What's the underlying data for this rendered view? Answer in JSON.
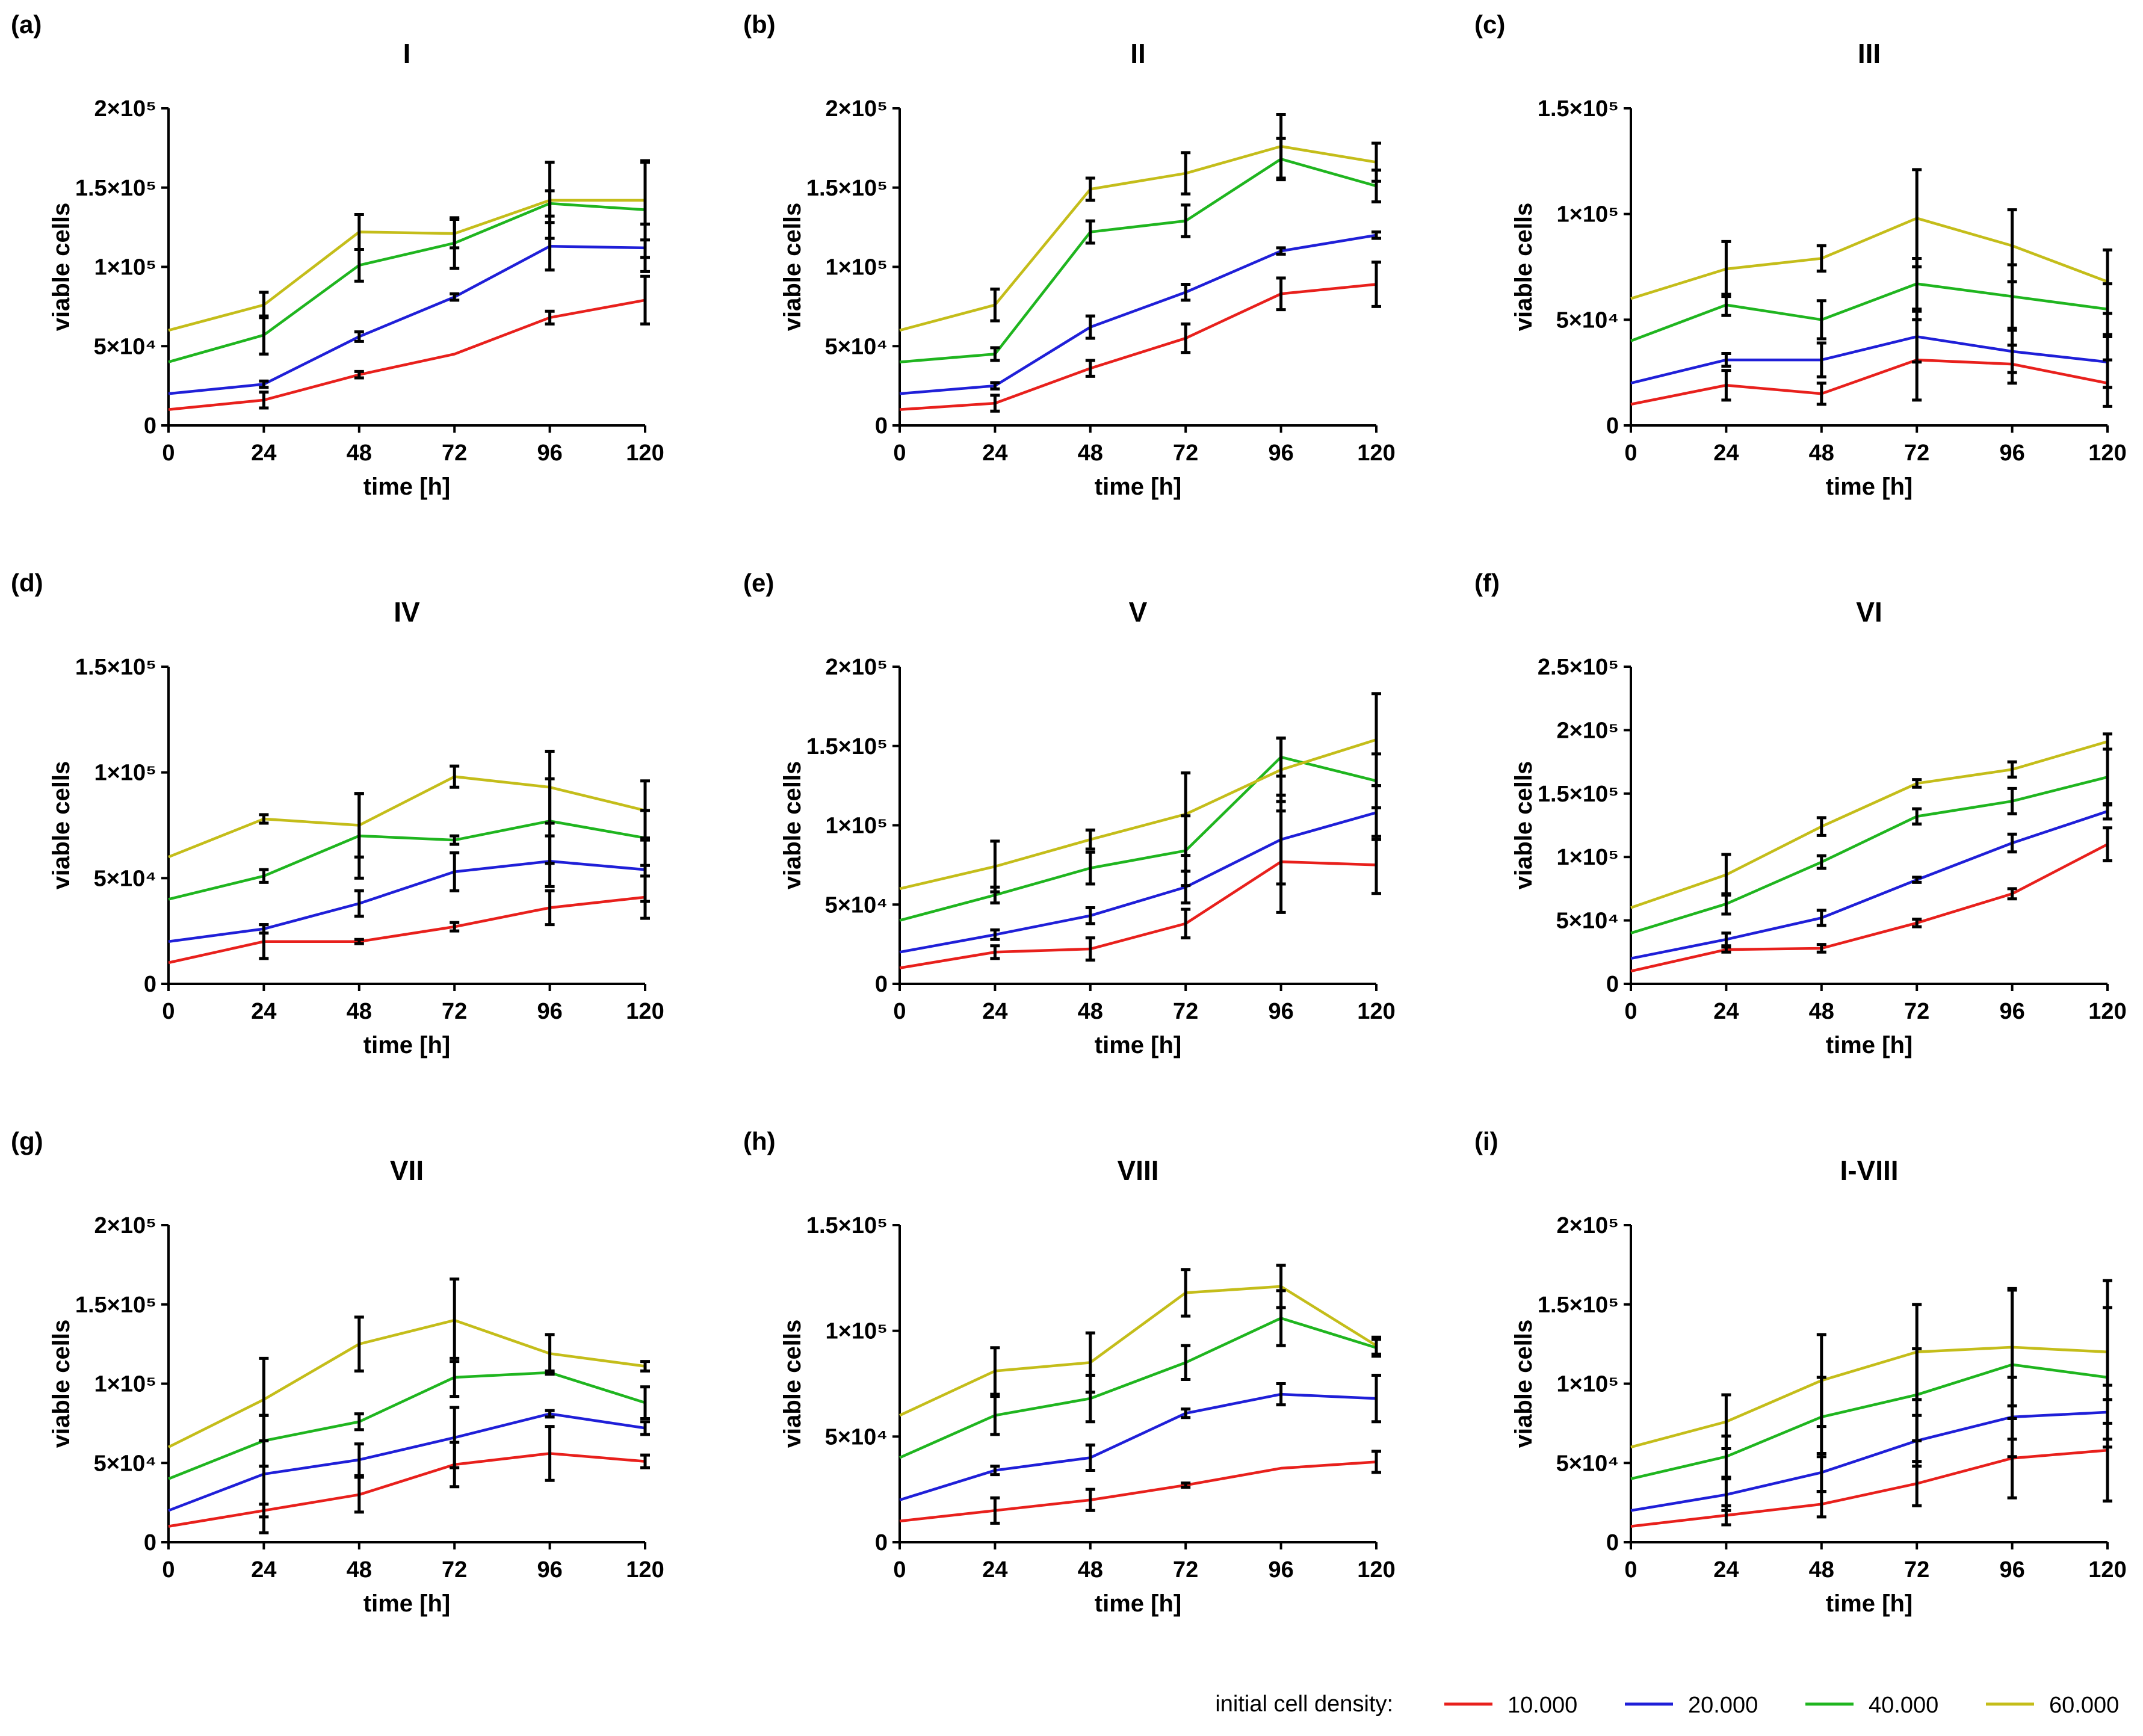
{
  "chart_data": [
    {
      "type": "line",
      "panel": "(a)",
      "title": "I",
      "xlabel": "time [h]",
      "ylabel": "viable cells",
      "x": [
        0,
        24,
        48,
        72,
        96,
        120
      ],
      "xticks": [
        "0",
        "24",
        "48",
        "72",
        "96",
        "120"
      ],
      "ylim": [
        0,
        200000
      ],
      "yticks": [
        {
          "value": 0,
          "label": "0"
        },
        {
          "value": 50000,
          "label": "5×10⁴"
        },
        {
          "value": 100000,
          "label": "1×10⁵"
        },
        {
          "value": 150000,
          "label": "1.5×10⁵"
        },
        {
          "value": 200000,
          "label": "2×10⁵"
        }
      ],
      "series": [
        {
          "name": "10.000",
          "values": [
            10000,
            16000,
            32000,
            45000,
            68000,
            79000
          ],
          "errors": [
            0,
            5000,
            2000,
            0,
            4000,
            15000
          ]
        },
        {
          "name": "20.000",
          "values": [
            20000,
            26000,
            56000,
            81000,
            113000,
            112000
          ],
          "errors": [
            0,
            2000,
            3000,
            2000,
            15000,
            15000
          ]
        },
        {
          "name": "40.000",
          "values": [
            40000,
            57000,
            101000,
            115000,
            140000,
            136000
          ],
          "errors": [
            0,
            12000,
            10000,
            16000,
            8000,
            30000
          ]
        },
        {
          "name": "60.000",
          "values": [
            60000,
            76000,
            122000,
            121000,
            142000,
            142000
          ],
          "errors": [
            0,
            8000,
            11000,
            9000,
            24000,
            25000
          ]
        }
      ]
    },
    {
      "type": "line",
      "panel": "(b)",
      "title": "II",
      "xlabel": "time [h]",
      "ylabel": "viable cells",
      "x": [
        0,
        24,
        48,
        72,
        96,
        120
      ],
      "xticks": [
        "0",
        "24",
        "48",
        "72",
        "96",
        "120"
      ],
      "ylim": [
        0,
        200000
      ],
      "yticks": [
        {
          "value": 0,
          "label": "0"
        },
        {
          "value": 50000,
          "label": "5×10⁴"
        },
        {
          "value": 100000,
          "label": "1×10⁵"
        },
        {
          "value": 150000,
          "label": "1.5×10⁵"
        },
        {
          "value": 200000,
          "label": "2×10⁵"
        }
      ],
      "series": [
        {
          "name": "10.000",
          "values": [
            10000,
            14000,
            36000,
            55000,
            83000,
            89000
          ],
          "errors": [
            0,
            5000,
            5000,
            9000,
            10000,
            14000
          ]
        },
        {
          "name": "20.000",
          "values": [
            20000,
            25000,
            62000,
            84000,
            110000,
            120000
          ],
          "errors": [
            0,
            2000,
            7000,
            5000,
            2000,
            2000
          ]
        },
        {
          "name": "40.000",
          "values": [
            40000,
            45000,
            122000,
            129000,
            168000,
            151000
          ],
          "errors": [
            0,
            4000,
            7000,
            10000,
            13000,
            10000
          ]
        },
        {
          "name": "60.000",
          "values": [
            60000,
            76000,
            149000,
            159000,
            176000,
            166000
          ],
          "errors": [
            0,
            10000,
            7000,
            13000,
            20000,
            12000
          ]
        }
      ]
    },
    {
      "type": "line",
      "panel": "(c)",
      "title": "III",
      "xlabel": "time [h]",
      "ylabel": "viable cells",
      "x": [
        0,
        24,
        48,
        72,
        96,
        120
      ],
      "xticks": [
        "0",
        "24",
        "48",
        "72",
        "96",
        "120"
      ],
      "ylim": [
        0,
        150000
      ],
      "yticks": [
        {
          "value": 0,
          "label": "0"
        },
        {
          "value": 50000,
          "label": "5×10⁴"
        },
        {
          "value": 100000,
          "label": "1×10⁵"
        },
        {
          "value": 150000,
          "label": "1.5×10⁵"
        }
      ],
      "series": [
        {
          "name": "10.000",
          "values": [
            10000,
            19000,
            15000,
            31000,
            29000,
            20000
          ],
          "errors": [
            0,
            7000,
            5000,
            19000,
            9000,
            11000
          ]
        },
        {
          "name": "20.000",
          "values": [
            20000,
            31000,
            31000,
            42000,
            35000,
            30000
          ],
          "errors": [
            0,
            3000,
            8000,
            12000,
            10000,
            12000
          ]
        },
        {
          "name": "40.000",
          "values": [
            40000,
            57000,
            50000,
            67000,
            61000,
            55000
          ],
          "errors": [
            0,
            5000,
            9000,
            12000,
            15000,
            12000
          ]
        },
        {
          "name": "60.000",
          "values": [
            60000,
            74000,
            79000,
            98000,
            85000,
            68000
          ],
          "errors": [
            0,
            13000,
            6000,
            23000,
            17000,
            15000
          ]
        }
      ]
    },
    {
      "type": "line",
      "panel": "(d)",
      "title": "IV",
      "xlabel": "time [h]",
      "ylabel": "viable cells",
      "x": [
        0,
        24,
        48,
        72,
        96,
        120
      ],
      "xticks": [
        "0",
        "24",
        "48",
        "72",
        "96",
        "120"
      ],
      "ylim": [
        0,
        150000
      ],
      "yticks": [
        {
          "value": 0,
          "label": "0"
        },
        {
          "value": 50000,
          "label": "5×10⁴"
        },
        {
          "value": 100000,
          "label": "1×10⁵"
        },
        {
          "value": 150000,
          "label": "1.5×10⁵"
        }
      ],
      "series": [
        {
          "name": "10.000",
          "values": [
            10000,
            20000,
            20000,
            27000,
            36000,
            41000
          ],
          "errors": [
            0,
            8000,
            1000,
            2000,
            8000,
            10000
          ]
        },
        {
          "name": "20.000",
          "values": [
            20000,
            26000,
            38000,
            53000,
            58000,
            54000
          ],
          "errors": [
            0,
            2000,
            6000,
            9000,
            12000,
            15000
          ]
        },
        {
          "name": "40.000",
          "values": [
            40000,
            51000,
            70000,
            68000,
            77000,
            69000
          ],
          "errors": [
            0,
            3000,
            20000,
            2000,
            20000,
            13000
          ]
        },
        {
          "name": "60.000",
          "values": [
            60000,
            78000,
            75000,
            98000,
            93000,
            82000
          ],
          "errors": [
            0,
            2000,
            15000,
            5000,
            17000,
            14000
          ]
        }
      ]
    },
    {
      "type": "line",
      "panel": "(e)",
      "title": "V",
      "xlabel": "time [h]",
      "ylabel": "viable cells",
      "x": [
        0,
        24,
        48,
        72,
        96,
        120
      ],
      "xticks": [
        "0",
        "24",
        "48",
        "72",
        "96",
        "120"
      ],
      "ylim": [
        0,
        200000
      ],
      "yticks": [
        {
          "value": 0,
          "label": "0"
        },
        {
          "value": 50000,
          "label": "5×10⁴"
        },
        {
          "value": 100000,
          "label": "1×10⁵"
        },
        {
          "value": 150000,
          "label": "1.5×10⁵"
        },
        {
          "value": 200000,
          "label": "2×10⁵"
        }
      ],
      "series": [
        {
          "name": "10.000",
          "values": [
            10000,
            20000,
            22000,
            38000,
            77000,
            75000
          ],
          "errors": [
            0,
            4000,
            7000,
            9000,
            32000,
            18000
          ]
        },
        {
          "name": "20.000",
          "values": [
            20000,
            31000,
            43000,
            61000,
            91000,
            108000
          ],
          "errors": [
            0,
            3000,
            5000,
            10000,
            28000,
            17000
          ]
        },
        {
          "name": "40.000",
          "values": [
            40000,
            56000,
            73000,
            84000,
            143000,
            128000
          ],
          "errors": [
            0,
            5000,
            10000,
            22000,
            12000,
            17000
          ]
        },
        {
          "name": "60.000",
          "values": [
            60000,
            74000,
            91000,
            107000,
            135000,
            154000
          ],
          "errors": [
            0,
            16000,
            6000,
            26000,
            20000,
            29000
          ]
        }
      ]
    },
    {
      "type": "line",
      "panel": "(f)",
      "title": "VI",
      "xlabel": "time [h]",
      "ylabel": "viable cells",
      "x": [
        0,
        24,
        48,
        72,
        96,
        120
      ],
      "xticks": [
        "0",
        "24",
        "48",
        "72",
        "96",
        "120"
      ],
      "ylim": [
        0,
        250000
      ],
      "yticks": [
        {
          "value": 0,
          "label": "0"
        },
        {
          "value": 50000,
          "label": "5×10⁴"
        },
        {
          "value": 100000,
          "label": "1×10⁵"
        },
        {
          "value": 150000,
          "label": "1.5×10⁵"
        },
        {
          "value": 200000,
          "label": "2×10⁵"
        },
        {
          "value": 250000,
          "label": "2.5×10⁵"
        }
      ],
      "series": [
        {
          "name": "10.000",
          "values": [
            10000,
            27000,
            28000,
            48000,
            71000,
            110000
          ],
          "errors": [
            0,
            2000,
            3000,
            3000,
            4000,
            13000
          ]
        },
        {
          "name": "20.000",
          "values": [
            20000,
            35000,
            52000,
            82000,
            111000,
            136000
          ],
          "errors": [
            0,
            5000,
            6000,
            2000,
            7000,
            6000
          ]
        },
        {
          "name": "40.000",
          "values": [
            40000,
            63000,
            96000,
            132000,
            144000,
            163000
          ],
          "errors": [
            0,
            8000,
            5000,
            6000,
            10000,
            22000
          ]
        },
        {
          "name": "60.000",
          "values": [
            60000,
            86000,
            124000,
            158000,
            169000,
            191000
          ],
          "errors": [
            0,
            16000,
            7000,
            3000,
            6000,
            6000
          ]
        }
      ]
    },
    {
      "type": "line",
      "panel": "(g)",
      "title": "VII",
      "xlabel": "time [h]",
      "ylabel": "viable cells",
      "x": [
        0,
        24,
        48,
        72,
        96,
        120
      ],
      "xticks": [
        "0",
        "24",
        "48",
        "72",
        "96",
        "120"
      ],
      "ylim": [
        0,
        200000
      ],
      "yticks": [
        {
          "value": 0,
          "label": "0"
        },
        {
          "value": 50000,
          "label": "5×10⁴"
        },
        {
          "value": 100000,
          "label": "1×10⁵"
        },
        {
          "value": 150000,
          "label": "1.5×10⁵"
        },
        {
          "value": 200000,
          "label": "2×10⁵"
        }
      ],
      "series": [
        {
          "name": "10.000",
          "values": [
            10000,
            20000,
            30000,
            49000,
            56000,
            51000
          ],
          "errors": [
            0,
            4000,
            11000,
            14000,
            17000,
            4000
          ]
        },
        {
          "name": "20.000",
          "values": [
            20000,
            43000,
            52000,
            66000,
            81000,
            72000
          ],
          "errors": [
            0,
            37000,
            10000,
            19000,
            2000,
            4000
          ]
        },
        {
          "name": "40.000",
          "values": [
            40000,
            64000,
            76000,
            104000,
            107000,
            88000
          ],
          "errors": [
            0,
            16000,
            5000,
            12000,
            1000,
            10000
          ]
        },
        {
          "name": "60.000",
          "values": [
            60000,
            90000,
            125000,
            140000,
            119000,
            111000
          ],
          "errors": [
            0,
            26000,
            17000,
            26000,
            12000,
            3000
          ]
        }
      ]
    },
    {
      "type": "line",
      "panel": "(h)",
      "title": "VIII",
      "xlabel": "time [h]",
      "ylabel": "viable cells",
      "x": [
        0,
        24,
        48,
        72,
        96,
        120
      ],
      "xticks": [
        "0",
        "24",
        "48",
        "72",
        "96",
        "120"
      ],
      "ylim": [
        0,
        150000
      ],
      "yticks": [
        {
          "value": 0,
          "label": "0"
        },
        {
          "value": 50000,
          "label": "5×10⁴"
        },
        {
          "value": 100000,
          "label": "1×10⁵"
        },
        {
          "value": 150000,
          "label": "1.5×10⁵"
        }
      ],
      "series": [
        {
          "name": "10.000",
          "values": [
            10000,
            15000,
            20000,
            27000,
            35000,
            38000
          ],
          "errors": [
            0,
            6000,
            5000,
            1000,
            0,
            5000
          ]
        },
        {
          "name": "20.000",
          "values": [
            20000,
            34000,
            40000,
            61000,
            70000,
            68000
          ],
          "errors": [
            0,
            2000,
            6000,
            2000,
            5000,
            11000
          ]
        },
        {
          "name": "40.000",
          "values": [
            40000,
            60000,
            68000,
            85000,
            106000,
            92000
          ],
          "errors": [
            0,
            9000,
            11000,
            8000,
            13000,
            4000
          ]
        },
        {
          "name": "60.000",
          "values": [
            60000,
            81000,
            85000,
            118000,
            121000,
            93000
          ],
          "errors": [
            0,
            11000,
            14000,
            11000,
            10000,
            4000
          ]
        }
      ]
    },
    {
      "type": "line",
      "panel": "(i)",
      "title": "I-VIII",
      "xlabel": "time [h]",
      "ylabel": "viable cells",
      "x": [
        0,
        24,
        48,
        72,
        96,
        120
      ],
      "xticks": [
        "0",
        "24",
        "48",
        "72",
        "96",
        "120"
      ],
      "ylim": [
        0,
        200000
      ],
      "yticks": [
        {
          "value": 0,
          "label": "0"
        },
        {
          "value": 50000,
          "label": "5×10⁴"
        },
        {
          "value": 100000,
          "label": "1×10⁵"
        },
        {
          "value": 150000,
          "label": "1.5×10⁵"
        },
        {
          "value": 200000,
          "label": "2×10⁵"
        }
      ],
      "series": [
        {
          "name": "10.000",
          "values": [
            10000,
            17000,
            24000,
            37000,
            53000,
            58000
          ],
          "errors": [
            0,
            6000,
            8000,
            14000,
            25000,
            32000
          ]
        },
        {
          "name": "20.000",
          "values": [
            20000,
            30000,
            44000,
            64000,
            79000,
            82000
          ],
          "errors": [
            0,
            10000,
            12000,
            16000,
            25000,
            17000
          ]
        },
        {
          "name": "40.000",
          "values": [
            40000,
            54000,
            79000,
            93000,
            112000,
            104000
          ],
          "errors": [
            0,
            13000,
            25000,
            29000,
            47000,
            44000
          ]
        },
        {
          "name": "60.000",
          "values": [
            60000,
            76000,
            102000,
            120000,
            123000,
            120000
          ],
          "errors": [
            0,
            17000,
            29000,
            30000,
            37000,
            45000
          ]
        }
      ]
    }
  ],
  "legend": {
    "title": "initial cell density:",
    "placement": "bottom-right",
    "items": [
      {
        "label": "10.000",
        "color": "#e8201c"
      },
      {
        "label": "20.000",
        "color": "#1f1fd8"
      },
      {
        "label": "40.000",
        "color": "#1fb51f"
      },
      {
        "label": "60.000",
        "color": "#c4bd1a"
      }
    ]
  }
}
